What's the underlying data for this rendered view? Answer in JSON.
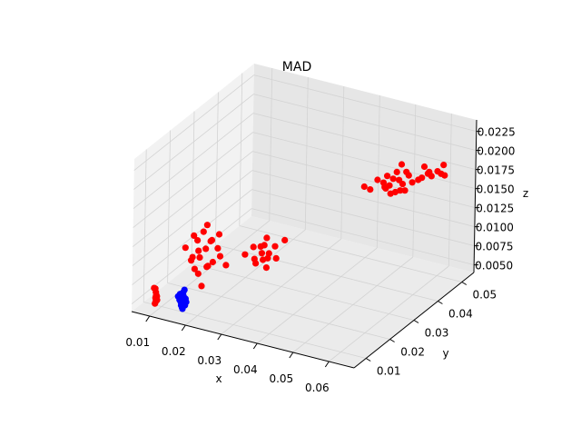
{
  "chart_data": {
    "type": "scatter",
    "projection": "3d",
    "title": "MAD",
    "xlabel": "x",
    "ylabel": "y",
    "zlabel": "z",
    "xlim": [
      0.005,
      0.067
    ],
    "ylim": [
      0.005,
      0.055
    ],
    "zlim": [
      0.004,
      0.024
    ],
    "xticks": [
      "0.01",
      "0.02",
      "0.03",
      "0.04",
      "0.05",
      "0.06"
    ],
    "yticks": [
      "0.01",
      "0.02",
      "0.03",
      "0.04",
      "0.05"
    ],
    "zticks": [
      "0.0050",
      "0.0075",
      "0.0100",
      "0.0125",
      "0.0150",
      "0.0175",
      "0.0200",
      "0.0225"
    ],
    "grid": true,
    "colors": {
      "red": "#ff0000",
      "blue": "#0000ff",
      "pane": "#f2f2f2",
      "grid": "#d3d3d3"
    },
    "series": [
      {
        "color": "red",
        "points": [
          [
            0.009,
            0.009,
            0.0048
          ],
          [
            0.0088,
            0.0092,
            0.0052
          ],
          [
            0.0092,
            0.0088,
            0.0056
          ],
          [
            0.009,
            0.009,
            0.006
          ],
          [
            0.0085,
            0.0095,
            0.0063
          ],
          [
            0.0095,
            0.0085,
            0.0058
          ],
          [
            0.0088,
            0.009,
            0.0045
          ],
          [
            0.0093,
            0.0091,
            0.005
          ],
          [
            0.0087,
            0.0087,
            0.0066
          ],
          [
            0.0091,
            0.0093,
            0.0054
          ],
          [
            0.02,
            0.01,
            0.0125
          ],
          [
            0.019,
            0.011,
            0.0135
          ],
          [
            0.022,
            0.01,
            0.013
          ],
          [
            0.021,
            0.009,
            0.012
          ],
          [
            0.018,
            0.01,
            0.011
          ],
          [
            0.023,
            0.011,
            0.014
          ],
          [
            0.02,
            0.012,
            0.0145
          ],
          [
            0.024,
            0.01,
            0.0115
          ],
          [
            0.017,
            0.009,
            0.0128
          ],
          [
            0.022,
            0.011,
            0.0105
          ],
          [
            0.019,
            0.01,
            0.01
          ],
          [
            0.025,
            0.011,
            0.015
          ],
          [
            0.021,
            0.012,
            0.0155
          ],
          [
            0.026,
            0.01,
            0.0125
          ],
          [
            0.018,
            0.011,
            0.014
          ],
          [
            0.023,
            0.009,
            0.011
          ],
          [
            0.02,
            0.01,
            0.0095
          ],
          [
            0.022,
            0.012,
            0.0135
          ],
          [
            0.019,
            0.009,
            0.0118
          ],
          [
            0.024,
            0.012,
            0.0128
          ],
          [
            0.021,
            0.01,
            0.008
          ],
          [
            0.027,
            0.011,
            0.0112
          ],
          [
            0.031,
            0.02,
            0.011
          ],
          [
            0.03,
            0.021,
            0.0115
          ],
          [
            0.032,
            0.019,
            0.0105
          ],
          [
            0.033,
            0.02,
            0.0112
          ],
          [
            0.029,
            0.02,
            0.01
          ],
          [
            0.034,
            0.021,
            0.012
          ],
          [
            0.031,
            0.022,
            0.0125
          ],
          [
            0.03,
            0.019,
            0.0098
          ],
          [
            0.035,
            0.02,
            0.0108
          ],
          [
            0.028,
            0.021,
            0.0112
          ],
          [
            0.032,
            0.021,
            0.0102
          ],
          [
            0.036,
            0.022,
            0.0128
          ],
          [
            0.027,
            0.019,
            0.0106
          ],
          [
            0.033,
            0.019,
            0.0096
          ],
          [
            0.031,
            0.021,
            0.0118
          ],
          [
            0.046,
            0.04,
            0.0165
          ],
          [
            0.047,
            0.041,
            0.016
          ],
          [
            0.05,
            0.042,
            0.017
          ],
          [
            0.051,
            0.043,
            0.0165
          ],
          [
            0.052,
            0.043,
            0.0175
          ],
          [
            0.053,
            0.044,
            0.0172
          ],
          [
            0.05,
            0.043,
            0.016
          ],
          [
            0.052,
            0.042,
            0.0158
          ],
          [
            0.054,
            0.044,
            0.0168
          ],
          [
            0.051,
            0.042,
            0.018
          ],
          [
            0.053,
            0.043,
            0.0185
          ],
          [
            0.055,
            0.045,
            0.0178
          ],
          [
            0.049,
            0.041,
            0.0175
          ],
          [
            0.052,
            0.044,
            0.0155
          ],
          [
            0.054,
            0.043,
            0.0162
          ],
          [
            0.056,
            0.045,
            0.017
          ],
          [
            0.057,
            0.046,
            0.0172
          ],
          [
            0.058,
            0.046,
            0.0176
          ],
          [
            0.059,
            0.047,
            0.018
          ],
          [
            0.06,
            0.047,
            0.0178
          ],
          [
            0.061,
            0.048,
            0.0183
          ],
          [
            0.062,
            0.048,
            0.0181
          ],
          [
            0.063,
            0.048,
            0.018
          ],
          [
            0.058,
            0.047,
            0.0188
          ],
          [
            0.06,
            0.046,
            0.0186
          ],
          [
            0.055,
            0.044,
            0.0185
          ],
          [
            0.053,
            0.045,
            0.019
          ],
          [
            0.062,
            0.049,
            0.019
          ],
          [
            0.051,
            0.041,
            0.0168
          ],
          [
            0.054,
            0.045,
            0.0157
          ]
        ]
      },
      {
        "color": "blue",
        "points": [
          [
            0.017,
            0.008,
            0.0063
          ],
          [
            0.0165,
            0.0082,
            0.0058
          ],
          [
            0.0175,
            0.0078,
            0.0068
          ],
          [
            0.017,
            0.008,
            0.0052
          ],
          [
            0.018,
            0.0082,
            0.006
          ],
          [
            0.016,
            0.0078,
            0.0066
          ],
          [
            0.0172,
            0.0081,
            0.0072
          ],
          [
            0.0168,
            0.0079,
            0.0055
          ],
          [
            0.0178,
            0.008,
            0.0056
          ],
          [
            0.0162,
            0.0081,
            0.0061
          ],
          [
            0.0174,
            0.0083,
            0.0075
          ],
          [
            0.0166,
            0.0077,
            0.007
          ],
          [
            0.018,
            0.0079,
            0.0065
          ],
          [
            0.017,
            0.0082,
            0.005
          ],
          [
            0.0176,
            0.0078,
            0.0062
          ]
        ]
      }
    ]
  }
}
